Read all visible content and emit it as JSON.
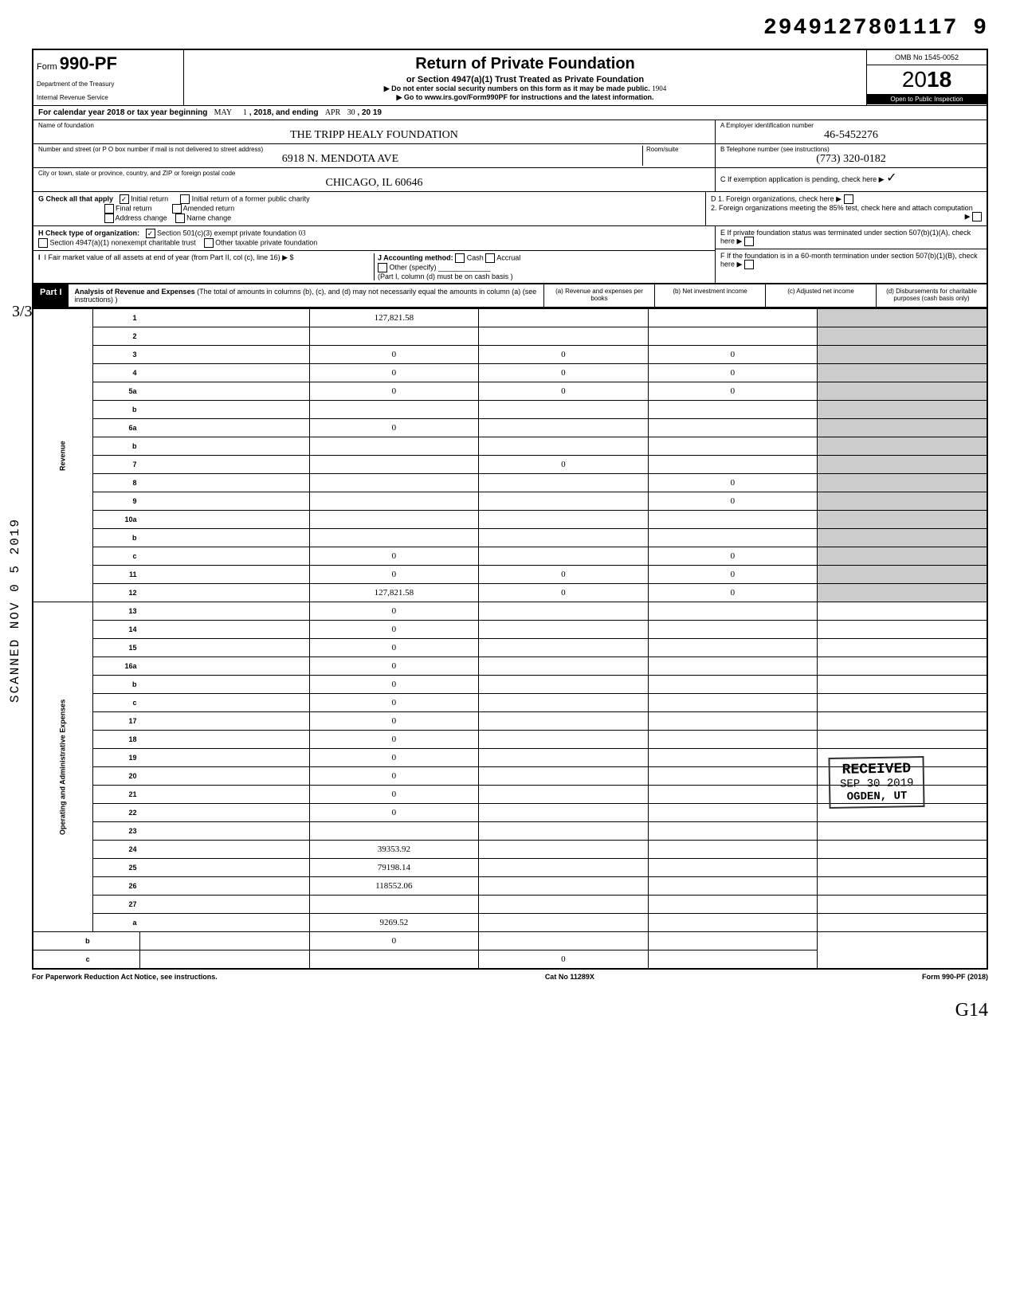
{
  "top_number": "2949127801117 9",
  "form": {
    "prefix": "Form",
    "number": "990-PF",
    "dept1": "Department of the Treasury",
    "dept2": "Internal Revenue Service"
  },
  "title": {
    "main": "Return of Private Foundation",
    "sub": "or Section 4947(a)(1) Trust Treated as Private Foundation",
    "line1": "▶ Do not enter social security numbers on this form as it may be made public.",
    "line2": "▶ Go to www.irs.gov/Form990PF for instructions and the latest information.",
    "hand_note": "1904"
  },
  "omb": "OMB No 1545-0052",
  "year_prefix": "20",
  "year_bold": "18",
  "inspection": "Open to Public Inspection",
  "calendar": {
    "text": "For calendar year 2018 or tax year beginning",
    "begin_month": "MAY",
    "begin_day": "1",
    "mid": ", 2018, and ending",
    "end_month": "APR",
    "end_day": "30",
    "end_year": ", 20 19"
  },
  "foundation": {
    "name_label": "Name of foundation",
    "name": "THE TRIPP HEALY FOUNDATION",
    "street_label": "Number and street (or P O box number if mail is not delivered to street address)",
    "street": "6918 N. MENDOTA AVE",
    "room_label": "Room/suite",
    "city_label": "City or town, state or province, country, and ZIP or foreign postal code",
    "city": "CHICAGO, IL  60646"
  },
  "boxA": {
    "label": "A  Employer identification number",
    "value": "46-5452276"
  },
  "boxB": {
    "label": "B  Telephone number (see instructions)",
    "value": "(773) 320-0182"
  },
  "boxC": {
    "label": "C  If exemption application is pending, check here ▶",
    "mark": "☐"
  },
  "boxD": {
    "line1": "D  1. Foreign organizations, check here",
    "line2": "2. Foreign organizations meeting the 85% test, check here and attach computation"
  },
  "boxE": "E  If private foundation status was terminated under section 507(b)(1)(A), check here",
  "boxF": "F  If the foundation is in a 60-month termination under section 507(b)(1)(B), check here",
  "checkG": {
    "label": "G  Check all that apply",
    "initial": "Initial return",
    "initial_checked": "✓",
    "initial_former": "Initial return of a former public charity",
    "final": "Final return",
    "amended": "Amended return",
    "address": "Address change",
    "name_change": "Name change"
  },
  "checkH": {
    "label": "H  Check type of organization:",
    "opt1": "Section 501(c)(3) exempt private foundation",
    "opt1_checked": "✓",
    "opt1_hand": "03",
    "opt2": "Section 4947(a)(1) nonexempt charitable trust",
    "opt3": "Other taxable private foundation"
  },
  "checkI": {
    "label": "I   Fair market value of all assets at end of year (from Part II, col (c), line 16) ▶ $",
    "j_label": "J  Accounting method:",
    "cash": "Cash",
    "accrual": "Accrual",
    "other": "Other (specify)",
    "note": "(Part I, column (d) must be on cash basis )"
  },
  "part1": {
    "label": "Part I",
    "title": "Analysis of Revenue and Expenses",
    "desc": "(The total of amounts in columns (b), (c), and (d) may not necessarily equal the amounts in column (a) (see instructions) )",
    "colA": "(a) Revenue and expenses per books",
    "colB": "(b) Net investment income",
    "colC": "(c) Adjusted net income",
    "colD": "(d) Disbursements for charitable purposes (cash basis only)"
  },
  "section_labels": {
    "revenue": "Revenue",
    "opex": "Operating and Administrative Expenses"
  },
  "rows": [
    {
      "n": "1",
      "d": "",
      "a": "127,821.58",
      "b": "",
      "c": ""
    },
    {
      "n": "2",
      "d": "",
      "a": "",
      "b": "",
      "c": ""
    },
    {
      "n": "3",
      "d": "",
      "a": "0",
      "b": "0",
      "c": "0"
    },
    {
      "n": "4",
      "d": "",
      "a": "0",
      "b": "0",
      "c": "0"
    },
    {
      "n": "5a",
      "d": "",
      "a": "0",
      "b": "0",
      "c": "0"
    },
    {
      "n": "b",
      "d": "",
      "a": "",
      "b": "",
      "c": ""
    },
    {
      "n": "6a",
      "d": "",
      "a": "0",
      "b": "",
      "c": ""
    },
    {
      "n": "b",
      "d": "",
      "a": "",
      "b": "",
      "c": ""
    },
    {
      "n": "7",
      "d": "",
      "a": "",
      "b": "0",
      "c": ""
    },
    {
      "n": "8",
      "d": "",
      "a": "",
      "b": "",
      "c": "0"
    },
    {
      "n": "9",
      "d": "",
      "a": "",
      "b": "",
      "c": "0"
    },
    {
      "n": "10a",
      "d": "",
      "a": "",
      "b": "",
      "c": ""
    },
    {
      "n": "b",
      "d": "",
      "a": "",
      "b": "",
      "c": ""
    },
    {
      "n": "c",
      "d": "",
      "a": "0",
      "b": "",
      "c": "0"
    },
    {
      "n": "11",
      "d": "",
      "a": "0",
      "b": "0",
      "c": "0"
    },
    {
      "n": "12",
      "d": "",
      "a": "127,821.58",
      "b": "0",
      "c": "0",
      "bold": true
    },
    {
      "n": "13",
      "d": "",
      "a": "0",
      "b": "",
      "c": ""
    },
    {
      "n": "14",
      "d": "",
      "a": "0",
      "b": "",
      "c": ""
    },
    {
      "n": "15",
      "d": "",
      "a": "0",
      "b": "",
      "c": ""
    },
    {
      "n": "16a",
      "d": "",
      "a": "0",
      "b": "",
      "c": ""
    },
    {
      "n": "b",
      "d": "",
      "a": "0",
      "b": "",
      "c": ""
    },
    {
      "n": "c",
      "d": "",
      "a": "0",
      "b": "",
      "c": ""
    },
    {
      "n": "17",
      "d": "",
      "a": "0",
      "b": "",
      "c": ""
    },
    {
      "n": "18",
      "d": "",
      "a": "0",
      "b": "",
      "c": ""
    },
    {
      "n": "19",
      "d": "",
      "a": "0",
      "b": "",
      "c": ""
    },
    {
      "n": "20",
      "d": "",
      "a": "0",
      "b": "",
      "c": ""
    },
    {
      "n": "21",
      "d": "",
      "a": "0",
      "b": "",
      "c": ""
    },
    {
      "n": "22",
      "d": "",
      "a": "0",
      "b": "",
      "c": ""
    },
    {
      "n": "23",
      "d": "",
      "a": "",
      "b": "",
      "c": ""
    },
    {
      "n": "24",
      "d": "",
      "a": "39353.92",
      "b": "",
      "c": "",
      "bold": true
    },
    {
      "n": "25",
      "d": "",
      "a": "79198.14",
      "b": "",
      "c": ""
    },
    {
      "n": "26",
      "d": "",
      "a": "118552.06",
      "b": "",
      "c": "",
      "bold": true
    },
    {
      "n": "27",
      "d": "",
      "a": "",
      "b": "",
      "c": ""
    },
    {
      "n": "a",
      "d": "",
      "a": "9269.52",
      "b": "",
      "c": "",
      "bold": true
    },
    {
      "n": "b",
      "d": "",
      "a": "",
      "b": "0",
      "c": "",
      "bold": true
    },
    {
      "n": "c",
      "d": "",
      "a": "",
      "b": "",
      "c": "0",
      "bold": true
    }
  ],
  "footer": {
    "left": "For Paperwork Reduction Act Notice, see instructions.",
    "center": "Cat No 11289X",
    "right": "Form 990-PF (2018)"
  },
  "stamps": {
    "side": "SCANNED NOV 0 5 2019",
    "received": "RECEIVED",
    "received_date": "SEP 30 2019",
    "received_loc": "OGDEN, UT",
    "margin": "3/3",
    "bottom": "G14"
  }
}
